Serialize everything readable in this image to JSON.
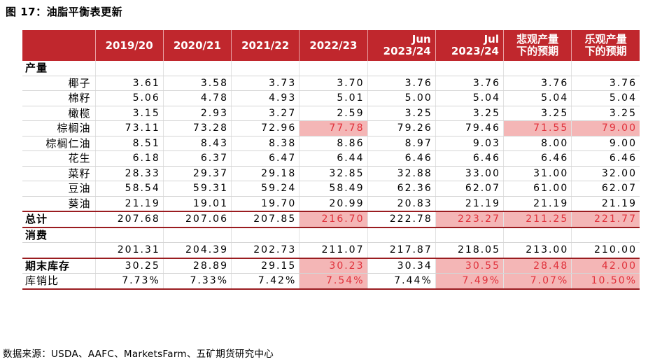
{
  "title": "图 17：油脂平衡表更新",
  "source": "数据来源：USDA、AAFC、MarketsFarm、五矿期货研究中心",
  "colors": {
    "header_bg": "#c0272d",
    "highlight": "#f4b6b6",
    "red_text": "#e0303a"
  },
  "headers": [
    "2019/20",
    "2020/21",
    "2021/22",
    "2022/23",
    "Jun\n2023/24",
    "Jul\n2023/24",
    "悲观产量\n下的预期",
    "乐观产量\n下的预期"
  ],
  "sections": {
    "production": "产量",
    "consumption": "消费"
  },
  "production_rows": [
    {
      "label": "椰子",
      "values": [
        "3.61",
        "3.58",
        "3.73",
        "3.70",
        "3.76",
        "3.76",
        "3.76",
        "3.76"
      ]
    },
    {
      "label": "棉籽",
      "values": [
        "5.06",
        "4.78",
        "4.93",
        "5.01",
        "5.00",
        "5.04",
        "5.04",
        "5.04"
      ]
    },
    {
      "label": "橄榄",
      "values": [
        "3.15",
        "2.93",
        "3.27",
        "2.59",
        "3.25",
        "3.25",
        "3.25",
        "3.25"
      ]
    },
    {
      "label": "棕榈油",
      "values": [
        "73.11",
        "73.28",
        "72.96",
        "77.78",
        "79.26",
        "79.46",
        "71.55",
        "79.00"
      ]
    },
    {
      "label": "棕榈仁油",
      "values": [
        "8.51",
        "8.43",
        "8.38",
        "8.86",
        "8.97",
        "9.03",
        "8.00",
        "9.00"
      ]
    },
    {
      "label": "花生",
      "values": [
        "6.18",
        "6.37",
        "6.47",
        "6.44",
        "6.46",
        "6.46",
        "6.46",
        "6.46"
      ]
    },
    {
      "label": "菜籽",
      "values": [
        "28.33",
        "29.37",
        "29.18",
        "32.85",
        "32.88",
        "33.00",
        "31.00",
        "32.00"
      ]
    },
    {
      "label": "豆油",
      "values": [
        "58.54",
        "59.31",
        "59.24",
        "58.49",
        "62.36",
        "62.07",
        "61.00",
        "62.07"
      ]
    },
    {
      "label": "葵油",
      "values": [
        "21.19",
        "19.01",
        "19.70",
        "20.99",
        "20.83",
        "21.19",
        "21.19",
        "21.19"
      ]
    }
  ],
  "total": {
    "label": "总计",
    "values": [
      "207.68",
      "207.06",
      "207.85",
      "216.70",
      "222.78",
      "223.27",
      "211.25",
      "221.77"
    ]
  },
  "consumption_row": {
    "label": "",
    "values": [
      "201.31",
      "204.39",
      "202.73",
      "211.07",
      "217.87",
      "218.05",
      "213.00",
      "210.00"
    ]
  },
  "inventory": {
    "label": "期末库存",
    "values": [
      "30.25",
      "28.89",
      "29.15",
      "30.23",
      "30.34",
      "30.55",
      "28.48",
      "42.00"
    ]
  },
  "ratio": {
    "label": "库销比",
    "values": [
      "7.73%",
      "7.33%",
      "7.42%",
      "7.54%",
      "7.44%",
      "7.49%",
      "7.07%",
      "10.50%"
    ]
  }
}
